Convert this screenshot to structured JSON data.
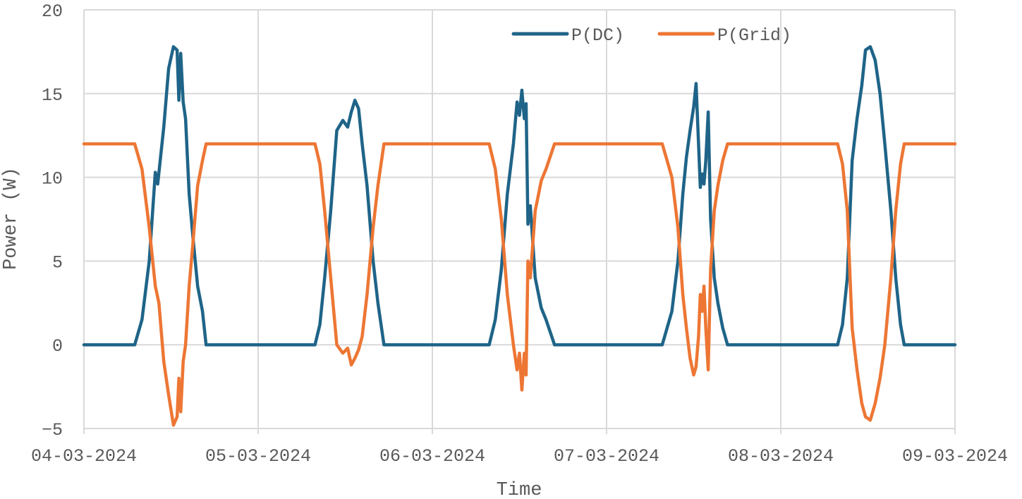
{
  "chart_data": {
    "type": "line",
    "xlabel": "Time",
    "ylabel": "Power (W)",
    "x_type": "date",
    "xlim": [
      "04-03-2024",
      "09-03-2024"
    ],
    "ylim": [
      -5,
      20
    ],
    "x_ticks": [
      "04-03-2024",
      "05-03-2024",
      "06-03-2024",
      "07-03-2024",
      "08-03-2024",
      "09-03-2024"
    ],
    "y_ticks": [
      -5,
      0,
      5,
      10,
      15,
      20
    ],
    "grid": true,
    "legend": "top-right",
    "series": [
      {
        "name": "P(DC)",
        "color": "#1f6488",
        "points": [
          [
            "04-03-2024 00:00",
            0
          ],
          [
            "04-03-2024 07:00",
            0
          ],
          [
            "04-03-2024 08:00",
            1.5
          ],
          [
            "04-03-2024 09:00",
            5
          ],
          [
            "04-03-2024 09:50",
            10.3
          ],
          [
            "04-03-2024 10:10",
            9.6
          ],
          [
            "04-03-2024 11:00",
            13
          ],
          [
            "04-03-2024 11:40",
            16.5
          ],
          [
            "04-03-2024 12:20",
            17.8
          ],
          [
            "04-03-2024 12:50",
            17.6
          ],
          [
            "04-03-2024 13:05",
            14.6
          ],
          [
            "04-03-2024 13:20",
            17.4
          ],
          [
            "04-03-2024 13:40",
            14.5
          ],
          [
            "04-03-2024 14:00",
            13.5
          ],
          [
            "04-03-2024 14:30",
            9
          ],
          [
            "04-03-2024 15:00",
            6.5
          ],
          [
            "04-03-2024 15:40",
            3.5
          ],
          [
            "04-03-2024 16:20",
            2
          ],
          [
            "04-03-2024 16:50",
            0
          ],
          [
            "05-03-2024 00:00",
            0
          ],
          [
            "05-03-2024 07:50",
            0
          ],
          [
            "05-03-2024 08:30",
            1.2
          ],
          [
            "05-03-2024 09:10",
            4
          ],
          [
            "05-03-2024 10:00",
            8
          ],
          [
            "05-03-2024 10:50",
            12.8
          ],
          [
            "05-03-2024 11:40",
            13.4
          ],
          [
            "05-03-2024 12:20",
            13
          ],
          [
            "05-03-2024 12:50",
            13.9
          ],
          [
            "05-03-2024 13:20",
            14.6
          ],
          [
            "05-03-2024 13:50",
            14.1
          ],
          [
            "05-03-2024 14:20",
            12
          ],
          [
            "05-03-2024 15:00",
            9.5
          ],
          [
            "05-03-2024 15:50",
            5
          ],
          [
            "05-03-2024 16:30",
            2.5
          ],
          [
            "05-03-2024 17:20",
            0
          ],
          [
            "06-03-2024 00:00",
            0
          ],
          [
            "06-03-2024 07:50",
            0
          ],
          [
            "06-03-2024 08:40",
            1.5
          ],
          [
            "06-03-2024 09:30",
            4.5
          ],
          [
            "06-03-2024 10:20",
            9
          ],
          [
            "06-03-2024 11:10",
            12
          ],
          [
            "06-03-2024 11:40",
            14.5
          ],
          [
            "06-03-2024 12:00",
            13.7
          ],
          [
            "06-03-2024 12:20",
            15.2
          ],
          [
            "06-03-2024 12:40",
            13.5
          ],
          [
            "06-03-2024 12:55",
            14.4
          ],
          [
            "06-03-2024 13:10",
            7.2
          ],
          [
            "06-03-2024 13:30",
            8.3
          ],
          [
            "06-03-2024 14:10",
            4
          ],
          [
            "06-03-2024 15:00",
            2.2
          ],
          [
            "06-03-2024 15:40",
            1.5
          ],
          [
            "06-03-2024 16:50",
            0
          ],
          [
            "07-03-2024 00:00",
            0
          ],
          [
            "07-03-2024 07:40",
            0
          ],
          [
            "07-03-2024 08:20",
            1
          ],
          [
            "07-03-2024 09:00",
            2
          ],
          [
            "07-03-2024 09:50",
            5
          ],
          [
            "07-03-2024 10:30",
            9
          ],
          [
            "07-03-2024 11:00",
            11.2
          ],
          [
            "07-03-2024 11:30",
            12.8
          ],
          [
            "07-03-2024 12:00",
            14.2
          ],
          [
            "07-03-2024 12:20",
            15.6
          ],
          [
            "07-03-2024 12:40",
            12
          ],
          [
            "07-03-2024 12:55",
            9.4
          ],
          [
            "07-03-2024 13:10",
            10.2
          ],
          [
            "07-03-2024 13:25",
            9.6
          ],
          [
            "07-03-2024 13:40",
            11
          ],
          [
            "07-03-2024 14:00",
            13.9
          ],
          [
            "07-03-2024 14:20",
            7.5
          ],
          [
            "07-03-2024 14:50",
            4
          ],
          [
            "07-03-2024 15:20",
            2.5
          ],
          [
            "07-03-2024 16:00",
            1
          ],
          [
            "07-03-2024 16:40",
            0
          ],
          [
            "08-03-2024 00:00",
            0
          ],
          [
            "08-03-2024 07:50",
            0
          ],
          [
            "08-03-2024 08:30",
            1.2
          ],
          [
            "08-03-2024 09:10",
            4
          ],
          [
            "08-03-2024 09:50",
            11
          ],
          [
            "08-03-2024 10:30",
            13.5
          ],
          [
            "08-03-2024 11:10",
            15.5
          ],
          [
            "08-03-2024 11:40",
            17.6
          ],
          [
            "08-03-2024 12:20",
            17.8
          ],
          [
            "08-03-2024 13:00",
            17
          ],
          [
            "08-03-2024 13:40",
            15
          ],
          [
            "08-03-2024 14:20",
            12
          ],
          [
            "08-03-2024 15:10",
            8
          ],
          [
            "08-03-2024 15:50",
            4
          ],
          [
            "08-03-2024 16:30",
            1.2
          ],
          [
            "08-03-2024 17:00",
            0
          ],
          [
            "09-03-2024 00:00",
            0
          ]
        ]
      },
      {
        "name": "P(Grid)",
        "color": "#ed7634",
        "points": [
          [
            "04-03-2024 00:00",
            12
          ],
          [
            "04-03-2024 07:00",
            12
          ],
          [
            "04-03-2024 08:00",
            10.5
          ],
          [
            "04-03-2024 09:00",
            7
          ],
          [
            "04-03-2024 09:50",
            3.5
          ],
          [
            "04-03-2024 10:20",
            2.5
          ],
          [
            "04-03-2024 11:00",
            -1
          ],
          [
            "04-03-2024 11:40",
            -3
          ],
          [
            "04-03-2024 12:20",
            -4.8
          ],
          [
            "04-03-2024 12:50",
            -4.3
          ],
          [
            "04-03-2024 13:05",
            -2
          ],
          [
            "04-03-2024 13:20",
            -4
          ],
          [
            "04-03-2024 13:40",
            -1
          ],
          [
            "04-03-2024 14:00",
            0
          ],
          [
            "04-03-2024 14:30",
            3.5
          ],
          [
            "04-03-2024 15:00",
            6
          ],
          [
            "04-03-2024 15:40",
            9.5
          ],
          [
            "04-03-2024 16:20",
            11
          ],
          [
            "04-03-2024 16:50",
            12
          ],
          [
            "05-03-2024 00:00",
            12
          ],
          [
            "05-03-2024 07:50",
            12
          ],
          [
            "05-03-2024 08:30",
            10.8
          ],
          [
            "05-03-2024 09:10",
            8
          ],
          [
            "05-03-2024 10:00",
            4
          ],
          [
            "05-03-2024 10:50",
            0
          ],
          [
            "05-03-2024 11:40",
            -0.5
          ],
          [
            "05-03-2024 12:20",
            -0.2
          ],
          [
            "05-03-2024 12:50",
            -1.2
          ],
          [
            "05-03-2024 13:20",
            -0.8
          ],
          [
            "05-03-2024 13:50",
            -0.3
          ],
          [
            "05-03-2024 14:20",
            0.5
          ],
          [
            "05-03-2024 15:00",
            3
          ],
          [
            "05-03-2024 15:50",
            7
          ],
          [
            "05-03-2024 16:30",
            9.5
          ],
          [
            "05-03-2024 17:20",
            12
          ],
          [
            "06-03-2024 00:00",
            12
          ],
          [
            "06-03-2024 07:50",
            12
          ],
          [
            "06-03-2024 08:40",
            10.5
          ],
          [
            "06-03-2024 09:30",
            7.5
          ],
          [
            "06-03-2024 10:20",
            3
          ],
          [
            "06-03-2024 11:10",
            0
          ],
          [
            "06-03-2024 11:40",
            -1.5
          ],
          [
            "06-03-2024 12:00",
            -0.5
          ],
          [
            "06-03-2024 12:20",
            -2.7
          ],
          [
            "06-03-2024 12:40",
            -0.5
          ],
          [
            "06-03-2024 12:55",
            -1.8
          ],
          [
            "06-03-2024 13:10",
            5
          ],
          [
            "06-03-2024 13:30",
            4
          ],
          [
            "06-03-2024 14:10",
            8
          ],
          [
            "06-03-2024 15:00",
            9.8
          ],
          [
            "06-03-2024 15:40",
            10.5
          ],
          [
            "06-03-2024 16:50",
            12
          ],
          [
            "07-03-2024 00:00",
            12
          ],
          [
            "07-03-2024 07:40",
            12
          ],
          [
            "07-03-2024 08:20",
            11
          ],
          [
            "07-03-2024 09:00",
            10
          ],
          [
            "07-03-2024 09:50",
            7
          ],
          [
            "07-03-2024 10:30",
            3
          ],
          [
            "07-03-2024 11:00",
            1
          ],
          [
            "07-03-2024 11:30",
            -0.8
          ],
          [
            "07-03-2024 12:00",
            -1.8
          ],
          [
            "07-03-2024 12:20",
            -1.3
          ],
          [
            "07-03-2024 12:40",
            0.5
          ],
          [
            "07-03-2024 12:55",
            3
          ],
          [
            "07-03-2024 13:10",
            2
          ],
          [
            "07-03-2024 13:25",
            3.5
          ],
          [
            "07-03-2024 13:40",
            1
          ],
          [
            "07-03-2024 14:00",
            -1.5
          ],
          [
            "07-03-2024 14:20",
            4.5
          ],
          [
            "07-03-2024 14:50",
            8
          ],
          [
            "07-03-2024 15:20",
            9.5
          ],
          [
            "07-03-2024 16:00",
            11
          ],
          [
            "07-03-2024 16:40",
            12
          ],
          [
            "08-03-2024 00:00",
            12
          ],
          [
            "08-03-2024 07:50",
            12
          ],
          [
            "08-03-2024 08:30",
            10.8
          ],
          [
            "08-03-2024 09:10",
            8
          ],
          [
            "08-03-2024 09:50",
            1
          ],
          [
            "08-03-2024 10:30",
            -1.5
          ],
          [
            "08-03-2024 11:10",
            -3.5
          ],
          [
            "08-03-2024 11:40",
            -4.3
          ],
          [
            "08-03-2024 12:20",
            -4.5
          ],
          [
            "08-03-2024 13:00",
            -3.5
          ],
          [
            "08-03-2024 13:40",
            -2
          ],
          [
            "08-03-2024 14:20",
            0
          ],
          [
            "08-03-2024 15:10",
            4
          ],
          [
            "08-03-2024 15:50",
            8
          ],
          [
            "08-03-2024 16:30",
            10.8
          ],
          [
            "08-03-2024 17:00",
            12
          ],
          [
            "09-03-2024 00:00",
            12
          ]
        ]
      }
    ]
  }
}
